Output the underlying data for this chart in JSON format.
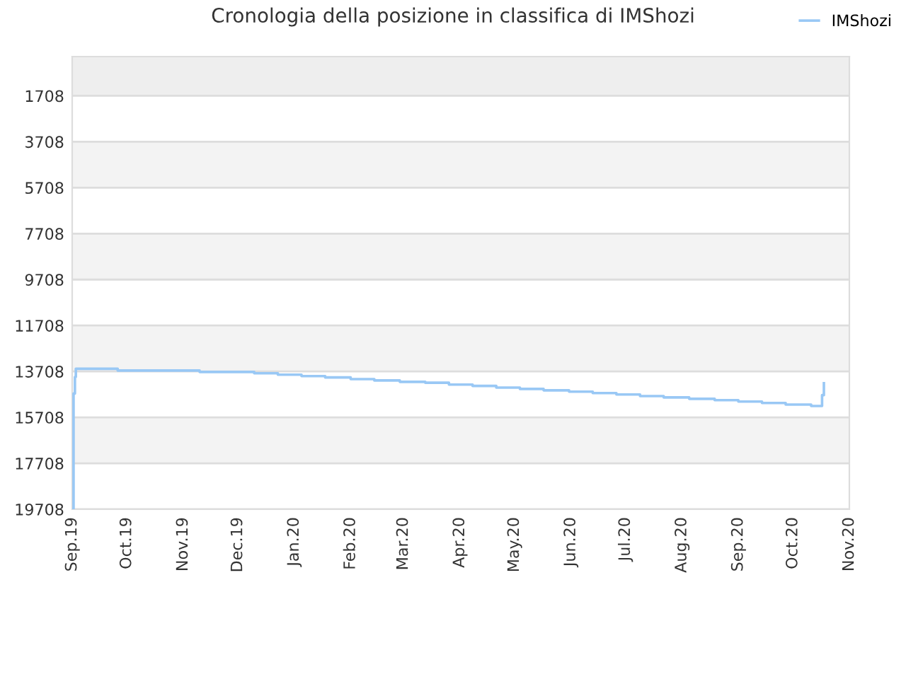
{
  "chart_data": {
    "type": "step",
    "title": "Cronologia della posizione in classifica di IMShozi",
    "x": [
      "2019-09-01T00:00",
      "2019-09-01T18:00",
      "2019-09-02T12:00",
      "2019-09-03",
      "2019-09-26",
      "2019-11-10",
      "2019-12-10",
      "2019-12-23",
      "2020-01-05",
      "2020-01-18",
      "2020-02-01",
      "2020-02-14",
      "2020-02-28",
      "2020-03-13",
      "2020-03-26",
      "2020-04-08",
      "2020-04-21",
      "2020-05-04",
      "2020-05-17",
      "2020-05-31",
      "2020-06-13",
      "2020-06-26",
      "2020-07-09",
      "2020-07-22",
      "2020-08-05",
      "2020-08-19",
      "2020-09-01",
      "2020-09-14",
      "2020-09-27",
      "2020-10-11",
      "2020-10-17",
      "2020-10-18"
    ],
    "series": [
      {
        "name": "IMShozi",
        "color": "#99c8f5",
        "values": [
          19708,
          14670,
          13950,
          13590,
          13670,
          13730,
          13790,
          13850,
          13910,
          13970,
          14040,
          14100,
          14160,
          14200,
          14280,
          14340,
          14410,
          14470,
          14530,
          14590,
          14650,
          14710,
          14780,
          14840,
          14900,
          14960,
          15020,
          15080,
          15150,
          15210,
          14740,
          14220
        ]
      }
    ],
    "bands": [
      {
        "axis": "y",
        "from": 0,
        "to": 1708,
        "color": "#eeeeee"
      },
      {
        "axis": "y",
        "from": 3708,
        "to": 5708,
        "color": "#f3f3f3"
      },
      {
        "axis": "y",
        "from": 7708,
        "to": 9708,
        "color": "#f3f3f3"
      },
      {
        "axis": "y",
        "from": 11708,
        "to": 13708,
        "color": "#f3f3f3"
      },
      {
        "axis": "y",
        "from": 15708,
        "to": 17708,
        "color": "#f3f3f3"
      }
    ],
    "xlim": [
      "2019-09-01",
      "2020-11-01"
    ],
    "xticks": [
      {
        "value": "2019-09-01",
        "label": "Sep.19"
      },
      {
        "value": "2019-10-01",
        "label": "Oct.19"
      },
      {
        "value": "2019-11-01",
        "label": "Nov.19"
      },
      {
        "value": "2019-12-01",
        "label": "Dec.19"
      },
      {
        "value": "2020-01-01",
        "label": "Jan.20"
      },
      {
        "value": "2020-02-01",
        "label": "Feb.20"
      },
      {
        "value": "2020-03-01",
        "label": "Mar.20"
      },
      {
        "value": "2020-04-01",
        "label": "Apr.20"
      },
      {
        "value": "2020-05-01",
        "label": "May.20"
      },
      {
        "value": "2020-06-01",
        "label": "Jun.20"
      },
      {
        "value": "2020-07-01",
        "label": "Jul.20"
      },
      {
        "value": "2020-08-01",
        "label": "Aug.20"
      },
      {
        "value": "2020-09-01",
        "label": "Sep.20"
      },
      {
        "value": "2020-10-01",
        "label": "Oct.20"
      },
      {
        "value": "2020-11-01",
        "label": "Nov.20"
      }
    ],
    "ylim": [
      19708,
      0
    ],
    "yticks": [
      1708,
      3708,
      5708,
      7708,
      9708,
      11708,
      13708,
      15708,
      17708,
      19708
    ],
    "grid": "y",
    "legend": "top right",
    "marker": "none",
    "line_style": "solid"
  }
}
